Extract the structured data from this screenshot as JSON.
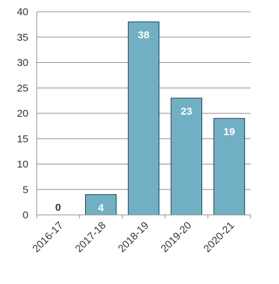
{
  "chart_data": {
    "type": "bar",
    "title": "",
    "xlabel": "",
    "ylabel": "",
    "categories": [
      "2016-17",
      "2017-18",
      "2018-19",
      "2019-20",
      "2020-21"
    ],
    "values": [
      0,
      4,
      38,
      23,
      19
    ],
    "data_labels": [
      "0",
      "4",
      "38",
      "23",
      "19"
    ],
    "ylim": [
      0,
      40
    ],
    "y_ticks": [
      0,
      5,
      10,
      15,
      20,
      25,
      30,
      35,
      40
    ],
    "y_tick_labels": [
      "0",
      "5",
      "10",
      "15",
      "20",
      "25",
      "30",
      "35",
      "40"
    ],
    "grid": true,
    "legend": "none",
    "colors": {
      "bar_fill": "#71b0c4",
      "bar_stroke": "#1f3a4d",
      "label_on_bar": "#ffffff",
      "label_above_bar": "#1f3a4d",
      "grid": "#8c8c8c",
      "axis": "#8c8c8c",
      "tick_text": "#333333"
    }
  }
}
